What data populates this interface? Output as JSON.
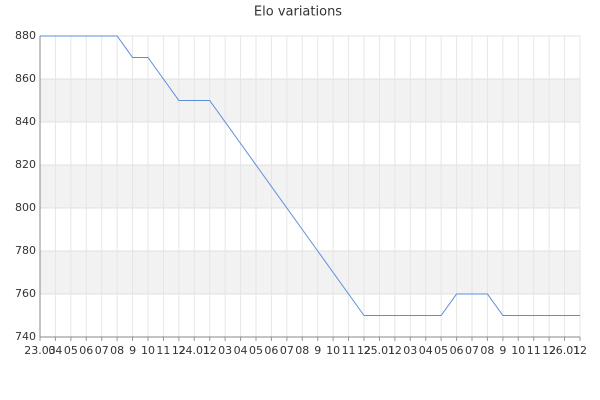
{
  "chart_data": {
    "type": "line",
    "title": "Elo variations",
    "categories": [
      "23.03",
      "04",
      "05",
      "06",
      "07",
      "08",
      "9",
      "10",
      "11",
      "12",
      "24.01",
      "12",
      "03",
      "04",
      "05",
      "06",
      "07",
      "08",
      "9",
      "10",
      "11",
      "12",
      "25.01",
      "12",
      "03",
      "04",
      "05",
      "06",
      "07",
      "08",
      "9",
      "10",
      "11",
      "12",
      "26.01",
      "12"
    ],
    "series": [
      {
        "name": "Elo",
        "color": "#5b8fd9",
        "values": [
          880,
          880,
          880,
          880,
          880,
          880,
          870,
          870,
          860,
          850,
          850,
          850,
          840,
          830,
          820,
          810,
          800,
          790,
          780,
          770,
          760,
          750,
          750,
          750,
          750,
          750,
          750,
          760,
          760,
          760,
          750,
          750,
          750,
          750,
          750,
          750
        ]
      }
    ],
    "ylim": [
      740,
      880
    ],
    "yticks": [
      740,
      760,
      780,
      800,
      820,
      840,
      860,
      880
    ],
    "grid": true
  }
}
